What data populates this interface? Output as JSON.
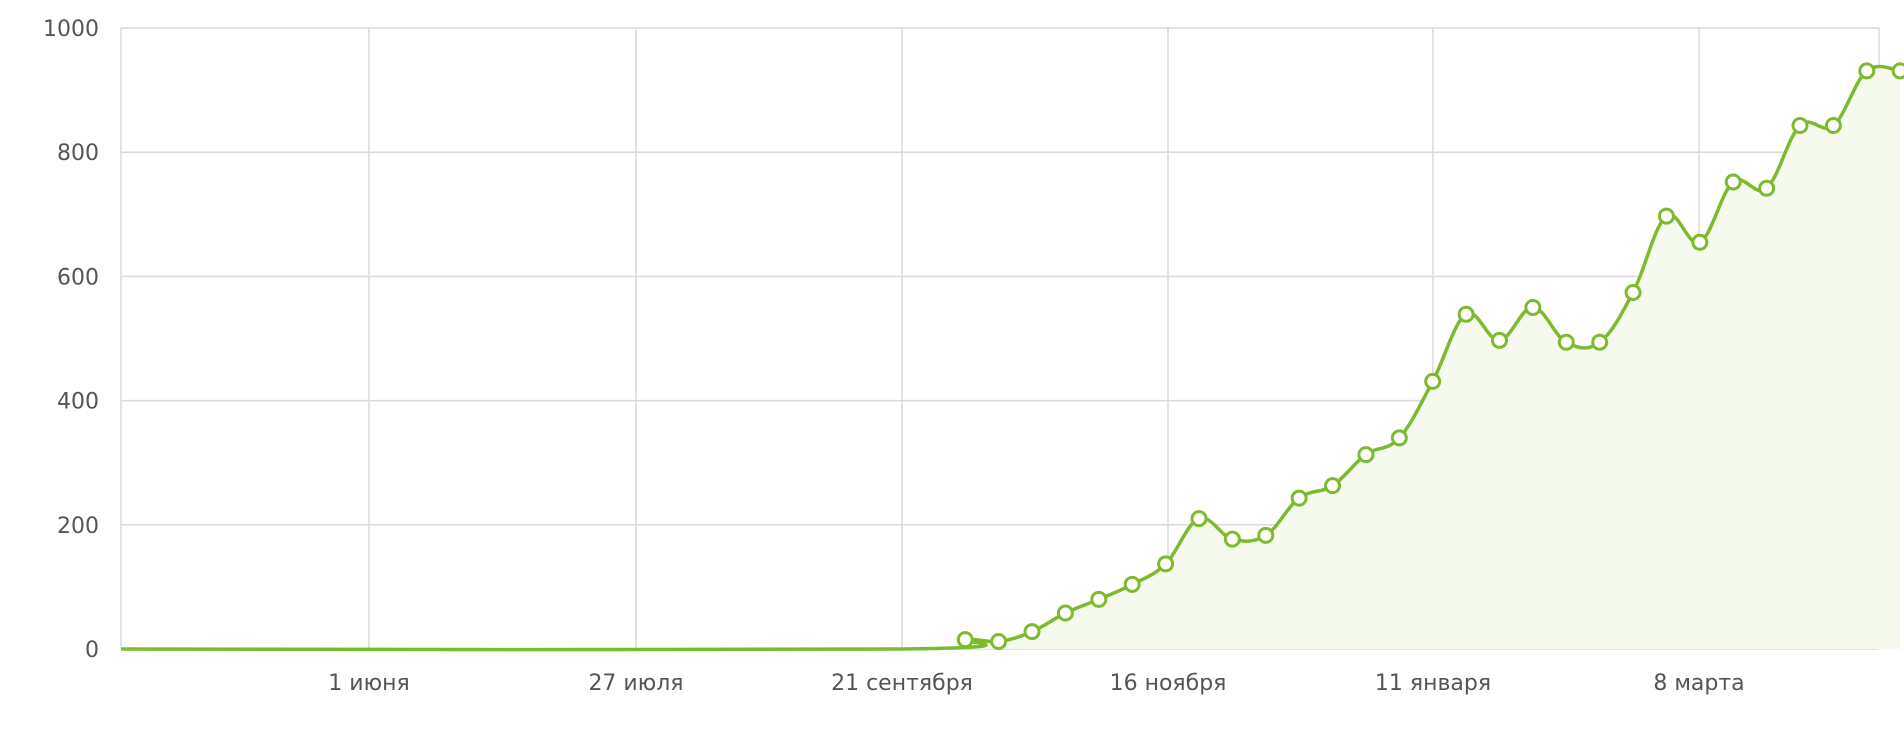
{
  "chart_data": {
    "type": "area",
    "title": "",
    "xlabel": "",
    "ylabel": "",
    "x_ticks": [
      "1 июня",
      "27 июля",
      "21 сентября",
      "16 ноября",
      "11 января",
      "8 марта"
    ],
    "y_ticks": [
      "0",
      "200",
      "400",
      "600",
      "800",
      "1000"
    ],
    "ylim": [
      0,
      1000
    ],
    "grid": true,
    "colors": {
      "line": "#7dbb2e",
      "fill": "#f5f9ee",
      "marker_fill": "#ffffff",
      "grid": "#d9d9d9",
      "axis": "#cccccc"
    },
    "series": [
      {
        "flat_from": "2018-04-02",
        "flat_to": "2018-09-21",
        "points": [
          {
            "date": "2018-10-04",
            "value": 15
          },
          {
            "date": "2018-10-11",
            "value": 12
          },
          {
            "date": "2018-10-18",
            "value": 28
          },
          {
            "date": "2018-10-25",
            "value": 58
          },
          {
            "date": "2018-11-01",
            "value": 80
          },
          {
            "date": "2018-11-08",
            "value": 104
          },
          {
            "date": "2018-11-15",
            "value": 137
          },
          {
            "date": "2018-11-22",
            "value": 210
          },
          {
            "date": "2018-11-29",
            "value": 177
          },
          {
            "date": "2018-12-06",
            "value": 183
          },
          {
            "date": "2018-12-13",
            "value": 243
          },
          {
            "date": "2018-12-20",
            "value": 263
          },
          {
            "date": "2018-12-27",
            "value": 313
          },
          {
            "date": "2019-01-03",
            "value": 340
          },
          {
            "date": "2019-01-10",
            "value": 431
          },
          {
            "date": "2019-01-17",
            "value": 539
          },
          {
            "date": "2019-01-24",
            "value": 497
          },
          {
            "date": "2019-01-31",
            "value": 550
          },
          {
            "date": "2019-02-07",
            "value": 494
          },
          {
            "date": "2019-02-14",
            "value": 494
          },
          {
            "date": "2019-02-21",
            "value": 574
          },
          {
            "date": "2019-02-28",
            "value": 697
          },
          {
            "date": "2019-03-07",
            "value": 655
          },
          {
            "date": "2019-03-14",
            "value": 752
          },
          {
            "date": "2019-03-21",
            "value": 742
          },
          {
            "date": "2019-03-28",
            "value": 843
          },
          {
            "date": "2019-04-04",
            "value": 843
          },
          {
            "date": "2019-04-11",
            "value": 931
          },
          {
            "date": "2019-04-18",
            "value": 931
          }
        ]
      }
    ]
  }
}
